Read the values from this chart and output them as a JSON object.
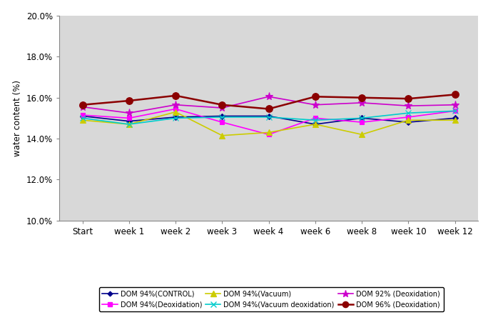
{
  "x_labels": [
    "Start",
    "week 1",
    "week 2",
    "week 3",
    "week 4",
    "week 6",
    "week 8",
    "week 10",
    "week 12"
  ],
  "series": [
    {
      "label": "DOM 94%(CONTROL)",
      "color": "#00008B",
      "marker": "D",
      "markersize": 4,
      "linewidth": 1.2,
      "values": [
        0.151,
        0.1485,
        0.1505,
        0.151,
        0.151,
        0.147,
        0.15,
        0.148,
        0.15
      ]
    },
    {
      "label": "DOM 94%(Deoxidation)",
      "color": "#FF00FF",
      "marker": "s",
      "markersize": 5,
      "linewidth": 1.2,
      "values": [
        0.1515,
        0.15,
        0.1545,
        0.148,
        0.142,
        0.15,
        0.148,
        0.1505,
        0.1535
      ]
    },
    {
      "label": "DOM 94%(Vacuum)",
      "color": "#CCCC00",
      "marker": "^",
      "markersize": 6,
      "linewidth": 1.2,
      "values": [
        0.149,
        0.147,
        0.153,
        0.1415,
        0.143,
        0.147,
        0.142,
        0.149,
        0.149
      ]
    },
    {
      "label": "DOM 94%(Vacuum deoxidation)",
      "color": "#00CCCC",
      "marker": "x",
      "markersize": 6,
      "linewidth": 1.2,
      "values": [
        0.15,
        0.147,
        0.15,
        0.1505,
        0.1505,
        0.149,
        0.15,
        0.1525,
        0.1535
      ]
    },
    {
      "label": "DOM 92% (Deoxidation)",
      "color": "#CC00CC",
      "marker": "*",
      "markersize": 8,
      "linewidth": 1.2,
      "values": [
        0.1555,
        0.1525,
        0.1565,
        0.155,
        0.1605,
        0.1565,
        0.1575,
        0.156,
        0.1565
      ]
    },
    {
      "label": "DOM 96% (Deoxidation)",
      "color": "#8B0000",
      "marker": "o",
      "markersize": 7,
      "linewidth": 1.8,
      "values": [
        0.1565,
        0.1585,
        0.161,
        0.1565,
        0.1545,
        0.1605,
        0.16,
        0.1595,
        0.1615
      ]
    }
  ],
  "ylabel": "water content (%)",
  "ylim": [
    0.1,
    0.2
  ],
  "yticks": [
    0.1,
    0.12,
    0.14,
    0.16,
    0.18,
    0.2
  ],
  "ytick_labels": [
    "10.0%",
    "12.0%",
    "14.0%",
    "16.0%",
    "18.0%",
    "20.0%"
  ],
  "plot_bg_color": "#D8D8D8",
  "fig_bg_color": "#FFFFFF",
  "legend_fontsize": 7.0,
  "axis_fontsize": 8.5
}
